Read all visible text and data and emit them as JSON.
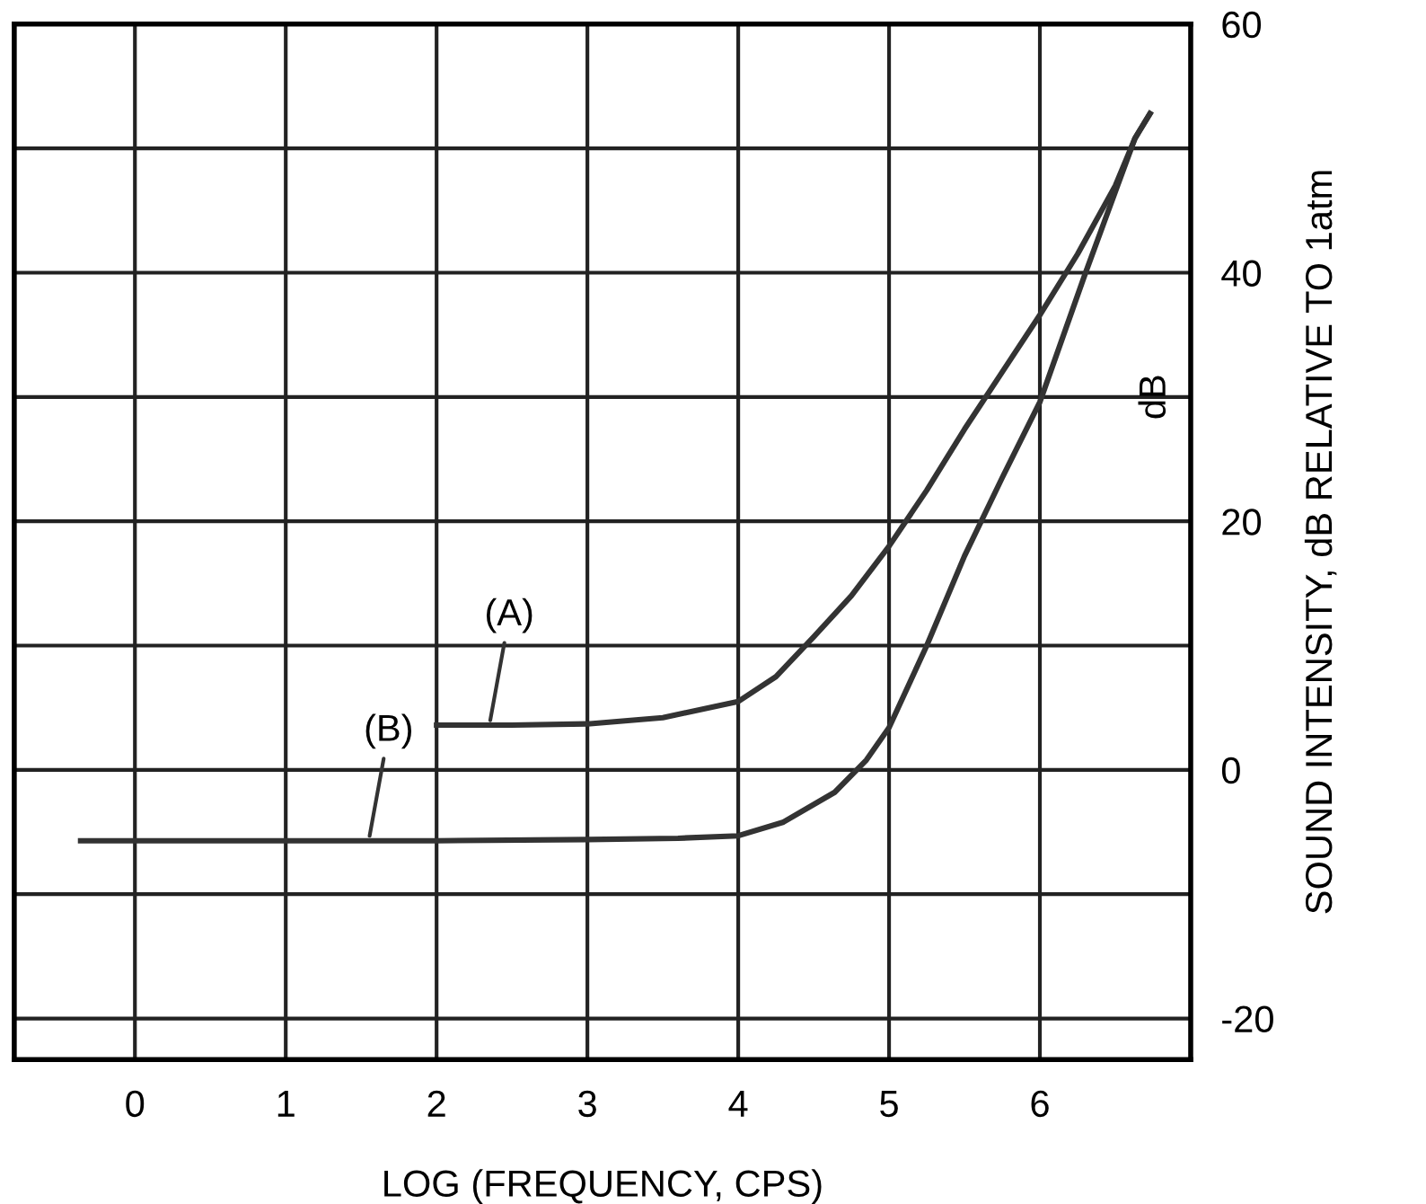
{
  "chart_data": {
    "type": "line",
    "xlabel": "LOG (FREQUENCY, CPS)",
    "ylabel": "SOUND INTENSITY, dB RELATIVE TO 1atm",
    "series": [
      {
        "color": "#333333",
        "x": [
          2,
          2.5,
          3,
          3.5,
          4,
          4.25,
          4.5,
          4.75,
          5,
          5.25,
          5.5,
          5.75,
          6,
          6.25,
          6.5,
          6.63,
          6.73
        ],
        "values": [
          3.6,
          3.6,
          3.7,
          4.2,
          5.5,
          7.5,
          10.7,
          14,
          18,
          22.5,
          27.4,
          32,
          36.6,
          41.5,
          47,
          50.8,
          52.8
        ]
      },
      {
        "color": "#333333",
        "x": [
          -0.36,
          1,
          2,
          3,
          3.6,
          4,
          4.3,
          4.64,
          4.85,
          5,
          5.25,
          5.5,
          5.75,
          6,
          6.3,
          6.5,
          6.63,
          6.73
        ],
        "values": [
          -5.7,
          -5.7,
          -5.7,
          -5.6,
          -5.5,
          -5.3,
          -4.2,
          -1.8,
          0.8,
          3.4,
          10,
          17.2,
          23.5,
          29.6,
          39.9,
          46.5,
          50.8,
          52.8
        ]
      }
    ],
    "annotations": [
      {
        "text": "(A)",
        "x": 2.35,
        "y": 3.6
      },
      {
        "text": "(B)",
        "x": 1.55,
        "y": -5.7
      },
      "dB"
    ],
    "xlim": [
      -0.8,
      7
    ],
    "xticks": [
      0,
      1,
      2,
      3,
      4,
      5,
      6
    ],
    "ylim": [
      -23.3,
      60
    ],
    "yticks": [
      {
        "value": -20,
        "label": "-20"
      },
      {
        "value": -10,
        "label": null
      },
      0,
      {
        "value": 10,
        "label": null
      },
      20,
      {
        "value": 30,
        "label": null
      },
      40,
      {
        "value": 50,
        "label": null
      },
      60
    ],
    "grid": true,
    "legend": false,
    "marker": "none",
    "line_style": "solid"
  }
}
